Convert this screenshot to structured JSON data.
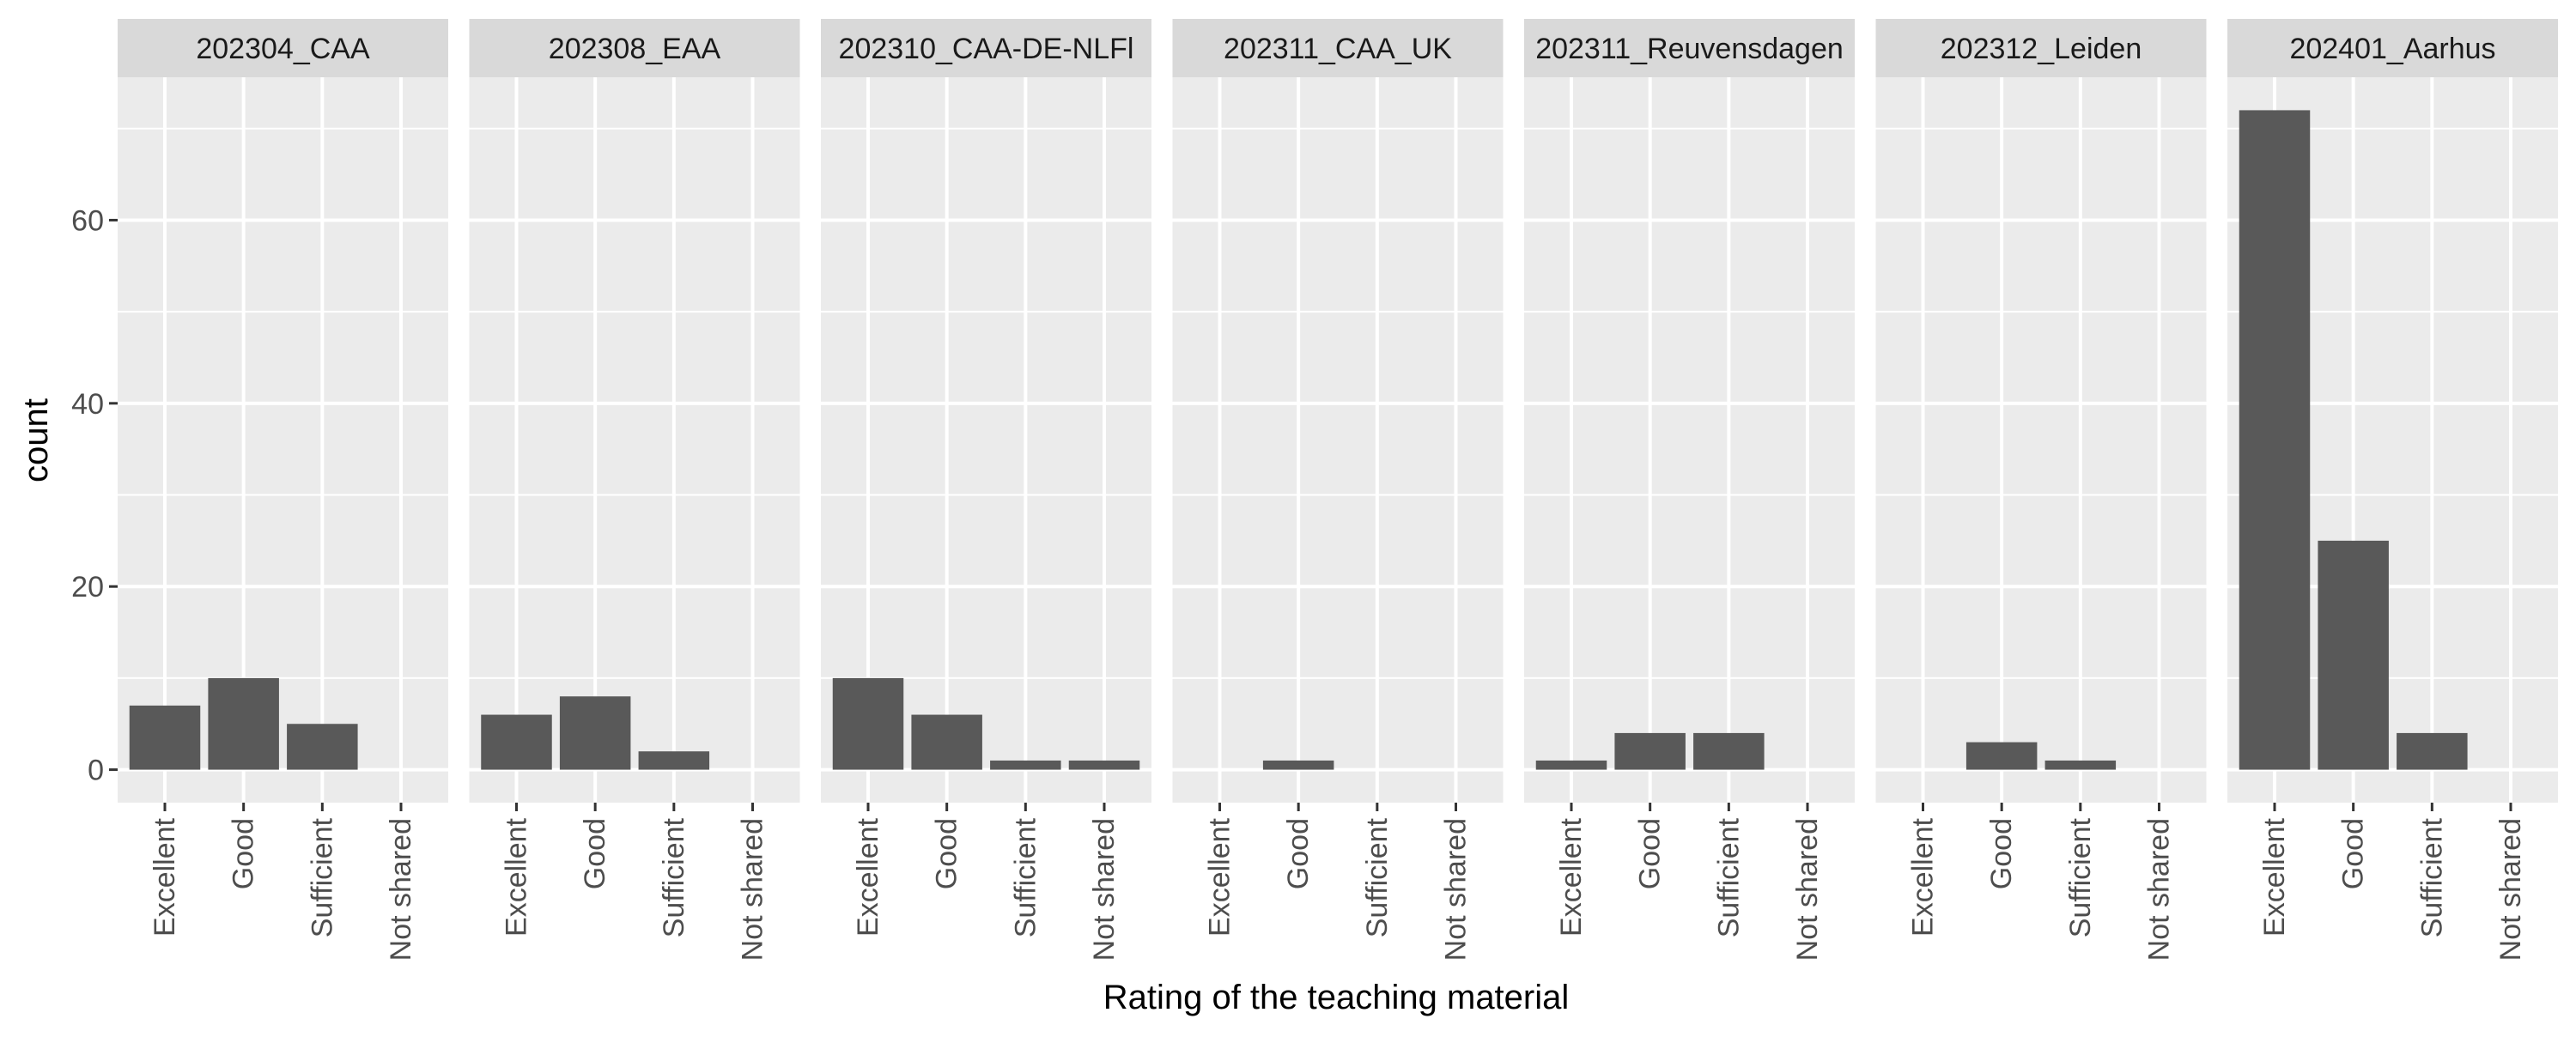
{
  "chart_data": {
    "type": "bar",
    "xlabel": "Rating of the teaching material",
    "ylabel": "count",
    "categories": [
      "Excellent",
      "Good",
      "Sufficient",
      "Not shared"
    ],
    "y_ticks": [
      0,
      20,
      40,
      60
    ],
    "ylim": [
      -3.6,
      75.6
    ],
    "grid": true,
    "bar_color": "#595959",
    "panel_background": "#ebebeb",
    "strip_background": "#d9d9d9",
    "facets": [
      {
        "name": "202304_CAA",
        "values": [
          7,
          10,
          5,
          0
        ]
      },
      {
        "name": "202308_EAA",
        "values": [
          6,
          8,
          2,
          0
        ]
      },
      {
        "name": "202310_CAA-DE-NLFl",
        "values": [
          10,
          6,
          1,
          1
        ]
      },
      {
        "name": "202311_CAA_UK",
        "values": [
          0,
          1,
          0,
          0
        ]
      },
      {
        "name": "202311_Reuvensdagen",
        "values": [
          1,
          4,
          4,
          0
        ]
      },
      {
        "name": "202312_Leiden",
        "values": [
          0,
          3,
          1,
          0
        ]
      },
      {
        "name": "202401_Aarhus",
        "values": [
          72,
          25,
          4,
          0
        ]
      }
    ]
  }
}
